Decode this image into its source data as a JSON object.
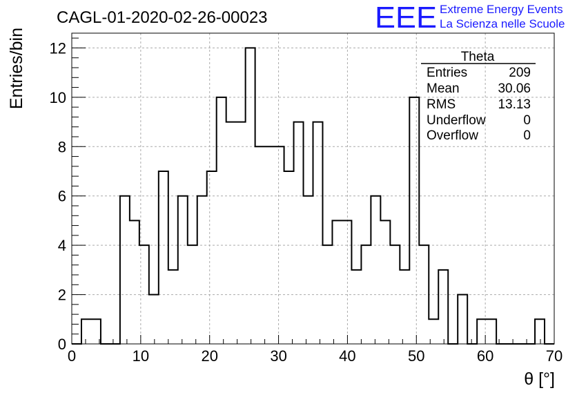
{
  "chart_data": {
    "type": "bar",
    "title": "CAGL-01-2020-02-26-00023",
    "xlabel": "θ [°]",
    "ylabel": "Entries/bin",
    "xlim": [
      0,
      70
    ],
    "ylim": [
      0,
      12.6
    ],
    "x_ticks": [
      0,
      10,
      20,
      30,
      40,
      50,
      60,
      70
    ],
    "y_ticks": [
      0,
      2,
      4,
      6,
      8,
      10,
      12
    ],
    "grid": true,
    "bin_edges": [
      0,
      1.4,
      2.8,
      4.2,
      5.6,
      7.0,
      8.4,
      9.8,
      11.2,
      12.6,
      14.0,
      15.4,
      16.8,
      18.2,
      19.6,
      21.0,
      22.4,
      23.8,
      25.2,
      26.6,
      28.0,
      29.4,
      30.8,
      32.2,
      33.6,
      35.0,
      36.4,
      37.8,
      39.2,
      40.6,
      42.0,
      43.4,
      44.8,
      46.2,
      47.6,
      49.0,
      50.4,
      51.8,
      53.2,
      54.6,
      56.0,
      57.4,
      58.8,
      60.2,
      61.6,
      63.0,
      64.4,
      65.8,
      67.2,
      68.6,
      70.0
    ],
    "values": [
      0,
      1,
      1,
      0,
      0,
      6,
      5,
      4,
      2,
      7,
      3,
      6,
      4,
      6,
      7,
      10,
      9,
      9,
      12,
      8,
      8,
      8,
      7,
      9,
      6,
      9,
      4,
      5,
      5,
      3,
      4,
      6,
      5,
      4,
      3,
      10,
      4,
      1,
      3,
      0,
      2,
      0,
      1,
      1,
      0,
      0,
      0,
      0,
      1,
      0
    ],
    "series": [
      {
        "name": "Theta",
        "values": [
          0,
          1,
          1,
          0,
          0,
          6,
          5,
          4,
          2,
          7,
          3,
          6,
          4,
          6,
          7,
          10,
          9,
          9,
          12,
          8,
          8,
          8,
          7,
          9,
          6,
          9,
          4,
          5,
          5,
          3,
          4,
          6,
          5,
          4,
          3,
          10,
          4,
          1,
          3,
          0,
          2,
          0,
          1,
          1,
          0,
          0,
          0,
          0,
          1,
          0
        ]
      }
    ]
  },
  "stats_box": {
    "title": "Theta",
    "rows": [
      {
        "label": "Entries",
        "value": "209"
      },
      {
        "label": "Mean",
        "value": "30.06"
      },
      {
        "label": "RMS",
        "value": "13.13"
      },
      {
        "label": "Underflow",
        "value": "0"
      },
      {
        "label": "Overflow",
        "value": "0"
      }
    ]
  },
  "logo": {
    "mark": "EEE",
    "line1": "Extreme Energy Events",
    "line2": "La Scienza nelle Scuole"
  },
  "colors": {
    "histogram": "#000000",
    "grid": "#aaaaaa",
    "logo": "#1a1aff"
  }
}
